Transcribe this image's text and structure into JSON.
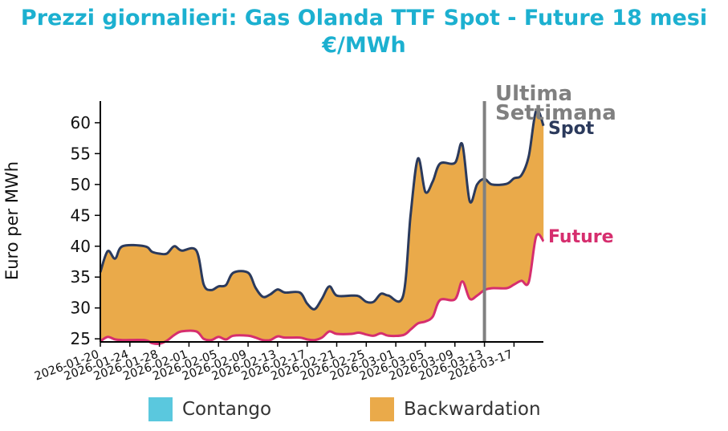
{
  "title": {
    "line1": "Prezzi giornalieri: Gas Olanda TTF Spot - Future 18 mesi",
    "line2": "€/MWh"
  },
  "colors": {
    "title": "#1cb0d0",
    "spot": "#2b3a5c",
    "future": "#d62e6e",
    "contango": "#5ac8de",
    "backwardation": "#eaaa4a",
    "marker": "#808080"
  },
  "chart_data": {
    "type": "area",
    "ylabel": "Euro per MWh",
    "xlabel": "",
    "ylim": [
      24.5,
      63.5
    ],
    "yticks": [
      25,
      30,
      35,
      40,
      45,
      50,
      55,
      60
    ],
    "xlim": [
      "2026-01-20",
      "2026-03-20"
    ],
    "xticks": [
      "2026-01-20",
      "2026-01-24",
      "2026-01-28",
      "2026-02-01",
      "2026-02-05",
      "2026-02-09",
      "2026-02-13",
      "2026-02-17",
      "2026-02-21",
      "2026-02-25",
      "2026-03-01",
      "2026-03-05",
      "2026-03-09",
      "2026-03-13",
      "2026-03-17"
    ],
    "marker_line": {
      "date": "2026-03-13",
      "label_line1": "Ultima",
      "label_line2": "Settimana"
    },
    "series": [
      {
        "name": "Spot",
        "points": [
          [
            "2026-01-20",
            35.8
          ],
          [
            "2026-01-21",
            39.2
          ],
          [
            "2026-01-22",
            38.0
          ],
          [
            "2026-01-23",
            40.0
          ],
          [
            "2026-01-26",
            40.0
          ],
          [
            "2026-01-27",
            39.1
          ],
          [
            "2026-01-28",
            38.8
          ],
          [
            "2026-01-29",
            38.8
          ],
          [
            "2026-01-30",
            40.0
          ],
          [
            "2026-01-31",
            39.3
          ],
          [
            "2026-02-02",
            39.3
          ],
          [
            "2026-02-03",
            33.8
          ],
          [
            "2026-02-04",
            32.9
          ],
          [
            "2026-02-05",
            33.5
          ],
          [
            "2026-02-06",
            33.7
          ],
          [
            "2026-02-07",
            35.7
          ],
          [
            "2026-02-09",
            35.7
          ],
          [
            "2026-02-10",
            33.3
          ],
          [
            "2026-02-11",
            31.8
          ],
          [
            "2026-02-12",
            32.2
          ],
          [
            "2026-02-13",
            33.0
          ],
          [
            "2026-02-14",
            32.5
          ],
          [
            "2026-02-16",
            32.5
          ],
          [
            "2026-02-17",
            30.7
          ],
          [
            "2026-02-18",
            29.8
          ],
          [
            "2026-02-19",
            31.5
          ],
          [
            "2026-02-20",
            33.5
          ],
          [
            "2026-02-21",
            32.0
          ],
          [
            "2026-02-23",
            32.0
          ],
          [
            "2026-02-24",
            31.9
          ],
          [
            "2026-02-25",
            31.0
          ],
          [
            "2026-02-26",
            31.0
          ],
          [
            "2026-02-27",
            32.3
          ],
          [
            "2026-02-28",
            32.0
          ],
          [
            "2026-03-02",
            32.0
          ],
          [
            "2026-03-03",
            45.0
          ],
          [
            "2026-03-04",
            54.2
          ],
          [
            "2026-03-05",
            48.8
          ],
          [
            "2026-03-06",
            50.5
          ],
          [
            "2026-03-07",
            53.4
          ],
          [
            "2026-03-09",
            53.5
          ],
          [
            "2026-03-10",
            56.5
          ],
          [
            "2026-03-11",
            47.3
          ],
          [
            "2026-03-12",
            50.0
          ],
          [
            "2026-03-13",
            50.9
          ],
          [
            "2026-03-14",
            50.0
          ],
          [
            "2026-03-16",
            50.1
          ],
          [
            "2026-03-17",
            51.0
          ],
          [
            "2026-03-18",
            51.5
          ],
          [
            "2026-03-19",
            54.6
          ],
          [
            "2026-03-20",
            62.0
          ],
          [
            "2026-03-21",
            59.5
          ]
        ]
      },
      {
        "name": "Future",
        "points": [
          [
            "2026-01-20",
            24.6
          ],
          [
            "2026-01-21",
            25.3
          ],
          [
            "2026-01-22",
            24.9
          ],
          [
            "2026-01-23",
            24.8
          ],
          [
            "2026-01-26",
            24.8
          ],
          [
            "2026-01-27",
            24.3
          ],
          [
            "2026-01-28",
            24.2
          ],
          [
            "2026-01-29",
            24.7
          ],
          [
            "2026-01-30",
            25.6
          ],
          [
            "2026-01-31",
            26.2
          ],
          [
            "2026-02-02",
            26.2
          ],
          [
            "2026-02-03",
            25.0
          ],
          [
            "2026-02-04",
            24.8
          ],
          [
            "2026-02-05",
            25.3
          ],
          [
            "2026-02-06",
            24.9
          ],
          [
            "2026-02-07",
            25.5
          ],
          [
            "2026-02-09",
            25.5
          ],
          [
            "2026-02-10",
            25.2
          ],
          [
            "2026-02-11",
            24.8
          ],
          [
            "2026-02-12",
            24.8
          ],
          [
            "2026-02-13",
            25.4
          ],
          [
            "2026-02-14",
            25.2
          ],
          [
            "2026-02-16",
            25.2
          ],
          [
            "2026-02-17",
            24.9
          ],
          [
            "2026-02-18",
            24.8
          ],
          [
            "2026-02-19",
            25.2
          ],
          [
            "2026-02-20",
            26.2
          ],
          [
            "2026-02-21",
            25.8
          ],
          [
            "2026-02-23",
            25.8
          ],
          [
            "2026-02-24",
            26.0
          ],
          [
            "2026-02-25",
            25.7
          ],
          [
            "2026-02-26",
            25.5
          ],
          [
            "2026-02-27",
            25.9
          ],
          [
            "2026-02-28",
            25.5
          ],
          [
            "2026-03-02",
            25.6
          ],
          [
            "2026-03-03",
            26.5
          ],
          [
            "2026-03-04",
            27.5
          ],
          [
            "2026-03-05",
            27.8
          ],
          [
            "2026-03-06",
            28.6
          ],
          [
            "2026-03-07",
            31.3
          ],
          [
            "2026-03-09",
            31.4
          ],
          [
            "2026-03-10",
            34.3
          ],
          [
            "2026-03-11",
            31.5
          ],
          [
            "2026-03-12",
            32.0
          ],
          [
            "2026-03-13",
            32.9
          ],
          [
            "2026-03-14",
            33.2
          ],
          [
            "2026-03-16",
            33.2
          ],
          [
            "2026-03-17",
            33.8
          ],
          [
            "2026-03-18",
            34.4
          ],
          [
            "2026-03-19",
            34.2
          ],
          [
            "2026-03-20",
            41.6
          ],
          [
            "2026-03-21",
            40.8
          ]
        ]
      }
    ],
    "legend": {
      "placement": "bottom",
      "items": [
        {
          "label": "Contango",
          "color": "#5ac8de"
        },
        {
          "label": "Backwardation",
          "color": "#eaaa4a"
        }
      ]
    }
  }
}
